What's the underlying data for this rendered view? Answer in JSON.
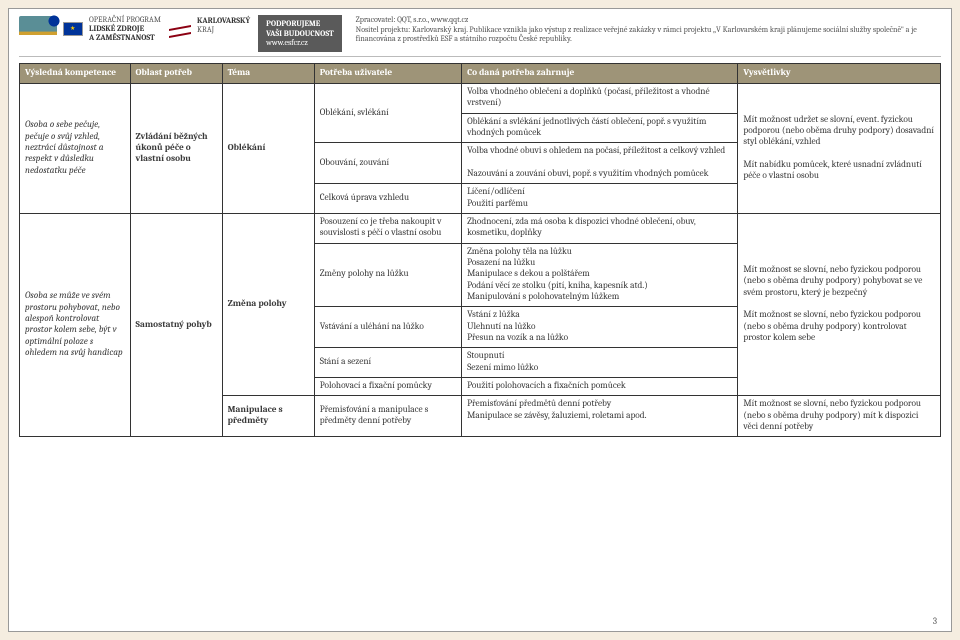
{
  "header": {
    "esf_line1": "OPERAČNÍ PROGRAM",
    "esf_line2": "LIDSKÉ ZDROJE",
    "esf_line3": "A ZAMĚSTNANOST",
    "kv_line1": "KARLOVARSKÝ",
    "kv_line2": "KRAJ",
    "podp_line1": "PODPORUJEME",
    "podp_line2": "VAŠI BUDOUCNOST",
    "podp_line3": "www.esfcr.cz",
    "disc_line1": "Zpracovatel: QQT, s.r.o., www.qqt.cz",
    "disc_line2": "Nositel projektu: Karlovarský kraj. Publikace vznikla jako výstup z realizace veřejné zakázky v rámci projektu „V Karlovarském kraji plánujeme sociální služby společně\" a je financována z prostředků ESF a státního rozpočtu České republiky."
  },
  "columns": {
    "c1": "Výsledná kompetence",
    "c2": "Oblast potřeb",
    "c3": "Téma",
    "c4": "Potřeba uživatele",
    "c5": "Co daná potřeba zahrnuje",
    "c6": "Vysvětlivky"
  },
  "sec1": {
    "kompetence": "Osoba o sebe pečuje, pečuje o svůj vzhled, neztrácí důstojnost a respekt v důsledku nedostatku péče",
    "oblast": "Zvládání běžných úkonů péče o vlastní osobu",
    "tema": "Oblékání",
    "p1_need": "Oblékání, svlékání",
    "p1_inc1": "Volba vhodného oblečení a doplňků (počasí, příležitost a vhodné vrstvení)",
    "p1_inc2": "Oblékání a svlékání jednotlivých částí oblečení, popř. s využitím vhodných pomůcek",
    "p2_need": "Obouvání, zouvání",
    "p2_inc1": "Volba vhodné obuvi s ohledem na počasí, příležitost a celkový vzhled",
    "p2_inc2": "Nazouvání a zouvání obuvi, popř. s využitím vhodných pomůcek",
    "p3_need": "Celková úprava vzhledu",
    "p3_inc1": "Líčení/odlíčení",
    "p3_inc2": "Použití parfému",
    "vysv1": "Mít možnost udržet se slovní, event. fyzickou podporou (nebo oběma druhy podpory) dosavadní styl oblékání, vzhled",
    "vysv2": "Mít nabídku pomůcek, které usnadní zvládnutí péče o vlastní osobu"
  },
  "sec2": {
    "kompetence": "Osoba se může ve svém prostoru pohybovat, nebo alespoň kontrolovat prostor kolem sebe, být v optimální poloze s ohledem na svůj handicap",
    "oblast": "Samostatný pohyb",
    "tema1": "Změna polohy",
    "t1p1_need": "Posouzení co je třeba nakoupit v souvislosti s péčí o vlastní osobu",
    "t1p1_inc": "Zhodnocení, zda má osoba k dispozici vhodné oblečení, obuv, kosmetiku, doplňky",
    "t1p2_need": "Změny polohy na lůžku",
    "t1p2_inc": "Změna polohy těla na lůžku\nPosazení na lůžku\nManipulace s dekou a polštářem\nPodání věcí ze stolku (pití, kniha, kapesník atd.)\nManipulování s polohovatelným lůžkem",
    "t1p3_need": "Vstávání a uléhání na lůžko",
    "t1p3_inc": "Vstání z lůžka\nUlehnutí na lůžko\nPřesun na vozík a na lůžko",
    "t1p4_need": "Stání a sezení",
    "t1p4_inc": "Stoupnutí\nSezení mimo lůžko",
    "t1p5_need": "Polohovací a fixační pomůcky",
    "t1p5_inc": "Použití polohovacích a fixačních pomůcek",
    "vysv1": "Mít možnost se slovní, nebo fyzickou podporou (nebo s oběma druhy podpory) pohybovat se ve svém prostoru, který je bezpečný",
    "vysv2": "Mít možnost se slovní, nebo fyzickou podporou (nebo s oběma druhy podpory) kontrolovat prostor kolem sebe",
    "tema2": "Manipulace s předměty",
    "t2p1_need": "Přemisťování a manipulace s předměty denní potřeby",
    "t2p1_inc": "Přemisťování předmětů denní potřeby\nManipulace se závěsy, žaluziemi, roletami apod.",
    "t2_vysv": "Mít možnost se slovní, nebo fyzickou podporou (nebo s oběma druhy podpory) mít k dispozici věci denní potřeby"
  },
  "pagenum": "3",
  "colors": {
    "header_bg": "#9e9478",
    "border": "#333333",
    "page_bg": "#ffffff",
    "outer_bg": "#f5ede0"
  }
}
